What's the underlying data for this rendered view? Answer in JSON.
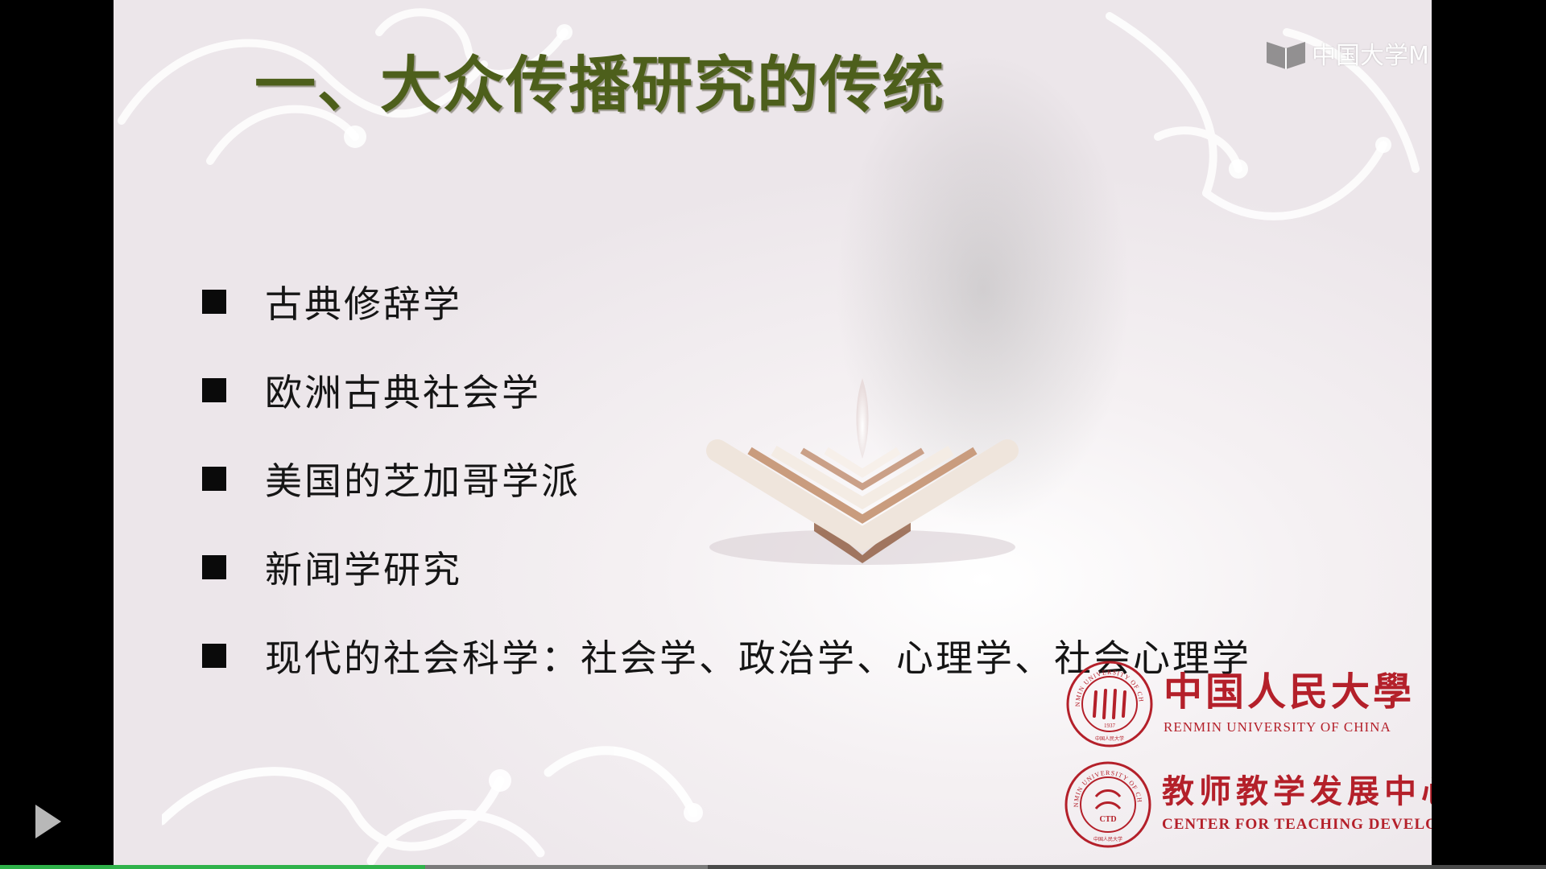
{
  "slide": {
    "title": "一、大众传播研究的传统",
    "bullets": [
      "古典修辞学",
      "欧洲古典社会学",
      "美国的芝加哥学派",
      "新闻学研究",
      "现代的社会科学：社会学、政治学、心理学、社会心理学"
    ]
  },
  "watermark": {
    "text": "中国大学M"
  },
  "logos": {
    "renmin": {
      "cn": "中国人民大學",
      "en": "RENMIN UNIVERSITY OF CHINA",
      "seal_text": "RENMIN UNIVERSITY OF CHINA",
      "seal_year": "1937",
      "seal_cn": "中国人民大学"
    },
    "ctd": {
      "cn": "教师教学发展中心",
      "en": "CENTER FOR TEACHING DEVELOPMENT",
      "seal_text": "RENMIN UNIVERSITY OF CHINA",
      "seal_inner": "CTD",
      "seal_cn": "中国人民大学"
    }
  },
  "player": {
    "play_icon": "play-icon",
    "progress_played": 0.275,
    "progress_buffered": 0.458,
    "colors": {
      "played": "#2fb24a",
      "buffered": "#7a7a7a",
      "track": "#4a4a4a"
    }
  },
  "colors": {
    "title": "#4d5f1b",
    "logo_red": "#b4202a",
    "stage": "#000000"
  }
}
